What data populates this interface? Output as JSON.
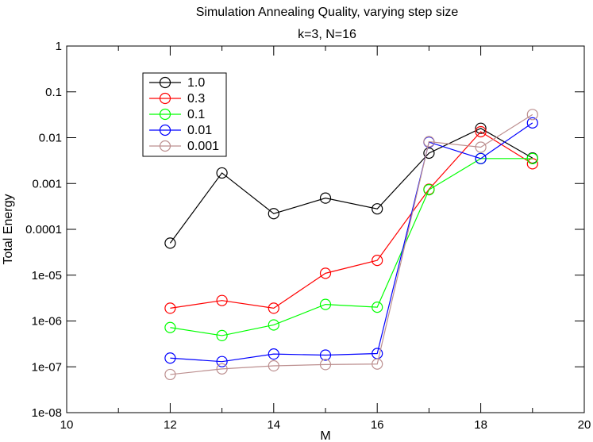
{
  "chart_data": {
    "type": "line",
    "title": "Simulation Annealing Quality, varying step size",
    "subtitle": "k=3, N=16",
    "xlabel": "M",
    "ylabel": "Total Energy",
    "xlim": [
      10,
      20
    ],
    "ylim": [
      1e-08,
      1
    ],
    "yscale": "log",
    "grid": false,
    "legend_position": "top-left",
    "x_ticks": [
      {
        "value": 10,
        "label": "10"
      },
      {
        "value": 12,
        "label": "12"
      },
      {
        "value": 14,
        "label": "14"
      },
      {
        "value": 16,
        "label": "16"
      },
      {
        "value": 18,
        "label": "18"
      },
      {
        "value": 20,
        "label": "20"
      }
    ],
    "y_ticks": [
      {
        "value": 1e-08,
        "label": "1e-08"
      },
      {
        "value": 1e-07,
        "label": "1e-07"
      },
      {
        "value": 1e-06,
        "label": "1e-06"
      },
      {
        "value": 1e-05,
        "label": "1e-05"
      },
      {
        "value": 0.0001,
        "label": "0.0001"
      },
      {
        "value": 0.001,
        "label": "0.001"
      },
      {
        "value": 0.01,
        "label": "0.01"
      },
      {
        "value": 0.1,
        "label": "0.1"
      },
      {
        "value": 1,
        "label": "1"
      }
    ],
    "x": [
      12,
      13,
      14,
      15,
      16,
      17,
      18,
      19
    ],
    "series": [
      {
        "name": "1.0",
        "color": "#000000",
        "values": [
          5e-05,
          0.0017,
          0.00022,
          0.00048,
          0.00028,
          0.0046,
          0.016,
          0.0036
        ]
      },
      {
        "name": "0.3",
        "color": "#ff0000",
        "values": [
          1.9e-06,
          2.8e-06,
          1.9e-06,
          1.1e-05,
          2.1e-05,
          0.00075,
          0.0135,
          0.0027
        ]
      },
      {
        "name": "0.1",
        "color": "#00ff00",
        "values": [
          7.2e-07,
          4.8e-07,
          8.2e-07,
          2.3e-06,
          2e-06,
          0.00073,
          0.0035,
          0.0035
        ]
      },
      {
        "name": "0.01",
        "color": "#0000ff",
        "values": [
          1.55e-07,
          1.3e-07,
          1.9e-07,
          1.8e-07,
          1.95e-07,
          0.008,
          0.0035,
          0.021
        ]
      },
      {
        "name": "0.001",
        "color": "#bc8f8f",
        "values": [
          6.8e-08,
          9e-08,
          1.05e-07,
          1.12e-07,
          1.15e-07,
          0.0082,
          0.0062,
          0.032
        ]
      }
    ]
  }
}
